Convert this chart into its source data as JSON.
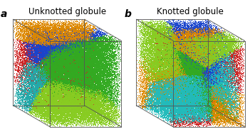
{
  "panel_a_label": "a",
  "panel_b_label": "b",
  "panel_a_title": "Unknotted globule",
  "panel_b_title": "Knotted globule",
  "title_fontsize": 8.5,
  "label_fontsize": 10,
  "background_color": "#ffffff",
  "n_points": 80000,
  "seed_a": 42,
  "seed_b": 77,
  "colors_a": [
    "#cc2020",
    "#1a44cc",
    "#33aa22",
    "#dd8800",
    "#22aaaa",
    "#88cc22"
  ],
  "colors_b": [
    "#cc2020",
    "#1a44cc",
    "#33aa22",
    "#dd8800",
    "#22bbbb",
    "#88cc22"
  ],
  "n_centers_a": 7,
  "n_centers_b": 16,
  "point_size_a": 0.5,
  "point_size_b": 0.5,
  "alpha": 1.0,
  "border_lw": 0.7,
  "border_color": "#555555"
}
